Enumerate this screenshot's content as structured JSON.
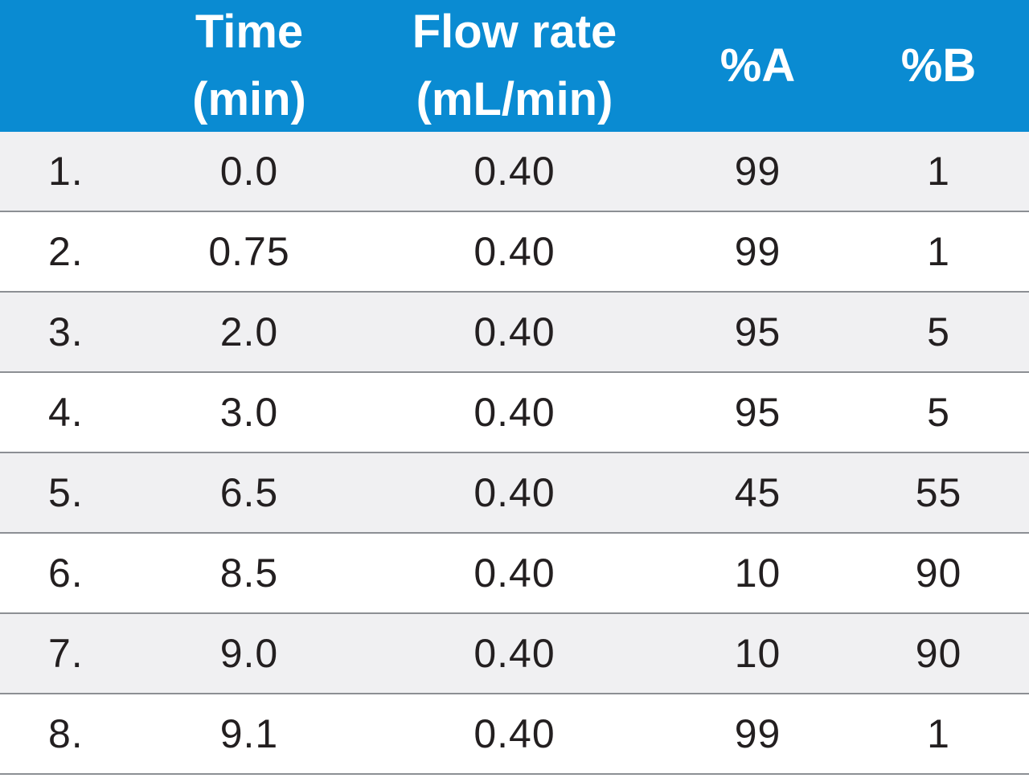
{
  "table": {
    "headers": [
      "",
      "Time\n(min)",
      "Flow rate\n(mL/min)",
      "%A",
      "%B"
    ],
    "rows": [
      [
        "1.",
        "0.0",
        "0.40",
        "99",
        "1"
      ],
      [
        "2.",
        "0.75",
        "0.40",
        "99",
        "1"
      ],
      [
        "3.",
        "2.0",
        "0.40",
        "95",
        "5"
      ],
      [
        "4.",
        "3.0",
        "0.40",
        "95",
        "5"
      ],
      [
        "5.",
        "6.5",
        "0.40",
        "45",
        "55"
      ],
      [
        "6.",
        "8.5",
        "0.40",
        "10",
        "90"
      ],
      [
        "7.",
        "9.0",
        "0.40",
        "10",
        "90"
      ],
      [
        "8.",
        "9.1",
        "0.40",
        "99",
        "1"
      ]
    ]
  },
  "colors": {
    "header_bg": "#0a8bd2",
    "header_text": "#ffffff",
    "row_alt_bg": "#f0f0f2",
    "row_bg": "#ffffff",
    "divider": "#8c8f94",
    "text": "#231f20"
  }
}
